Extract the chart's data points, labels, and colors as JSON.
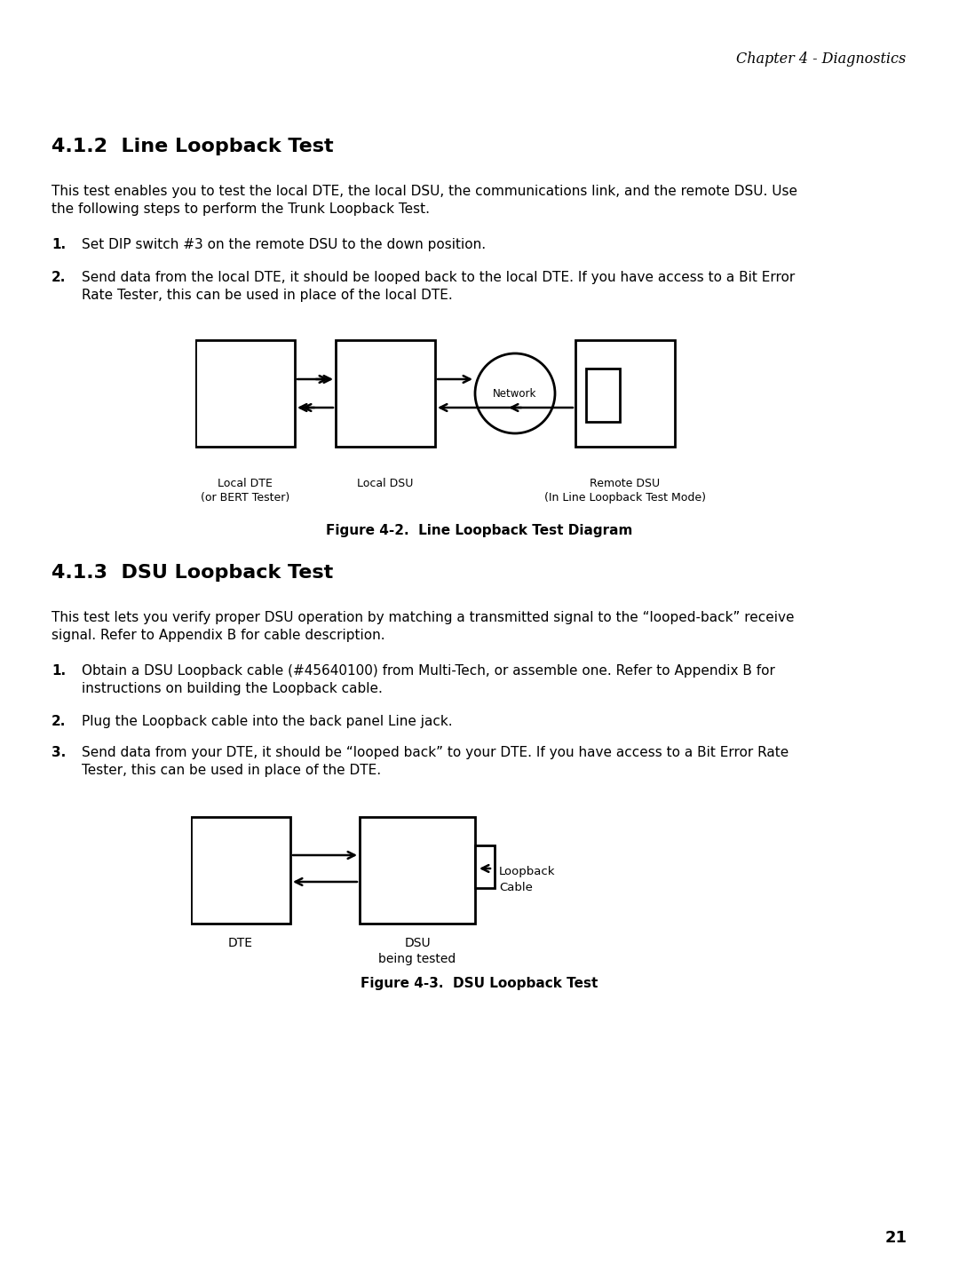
{
  "page_header": "Chapter 4 - Diagnostics",
  "section1_title": "4.1.2  Line Loopback Test",
  "section1_body_line1": "This test enables you to test the local DTE, the local DSU, the communications link, and the remote DSU. Use",
  "section1_body_line2": "the following steps to perform the Trunk Loopback Test.",
  "section1_step1": "Set DIP switch #3 on the remote DSU to the down position.",
  "section1_step2_line1": "Send data from the local DTE, it should be looped back to the local DTE. If you have access to a Bit Error",
  "section1_step2_line2": "Rate Tester, this can be used in place of the local DTE.",
  "fig1_caption": "Figure 4-2.  Line Loopback Test Diagram",
  "fig1_lbl_dte_l1": "Local DTE",
  "fig1_lbl_dte_l2": "(or BERT Tester)",
  "fig1_lbl_dsu": "Local DSU",
  "fig1_lbl_rdsu_l1": "Remote DSU",
  "fig1_lbl_rdsu_l2": "(In Line Loopback Test Mode)",
  "fig1_network": "Network",
  "section2_title": "4.1.3  DSU Loopback Test",
  "section2_body_line1": "This test lets you verify proper DSU operation by matching a transmitted signal to the “looped-back” receive",
  "section2_body_line2": "signal. Refer to Appendix B for cable description.",
  "section2_step1_line1": "Obtain a DSU Loopback cable (#45640100) from Multi-Tech, or assemble one. Refer to Appendix B for",
  "section2_step1_line2": "instructions on building the Loopback cable.",
  "section2_step2": "Plug the Loopback cable into the back panel Line jack.",
  "section2_step3_line1": "Send data from your DTE, it should be “looped back” to your DTE. If you have access to a Bit Error Rate",
  "section2_step3_line2": "Tester, this can be used in place of the DTE.",
  "fig2_caption": "Figure 4-3.  DSU Loopback Test",
  "fig2_lbl_dte": "DTE",
  "fig2_lbl_dsu_l1": "DSU",
  "fig2_lbl_dsu_l2": "being tested",
  "fig2_lbl_cable_l1": "Loopback",
  "fig2_lbl_cable_l2": "Cable",
  "page_number": "21",
  "bg_color": "#ffffff"
}
